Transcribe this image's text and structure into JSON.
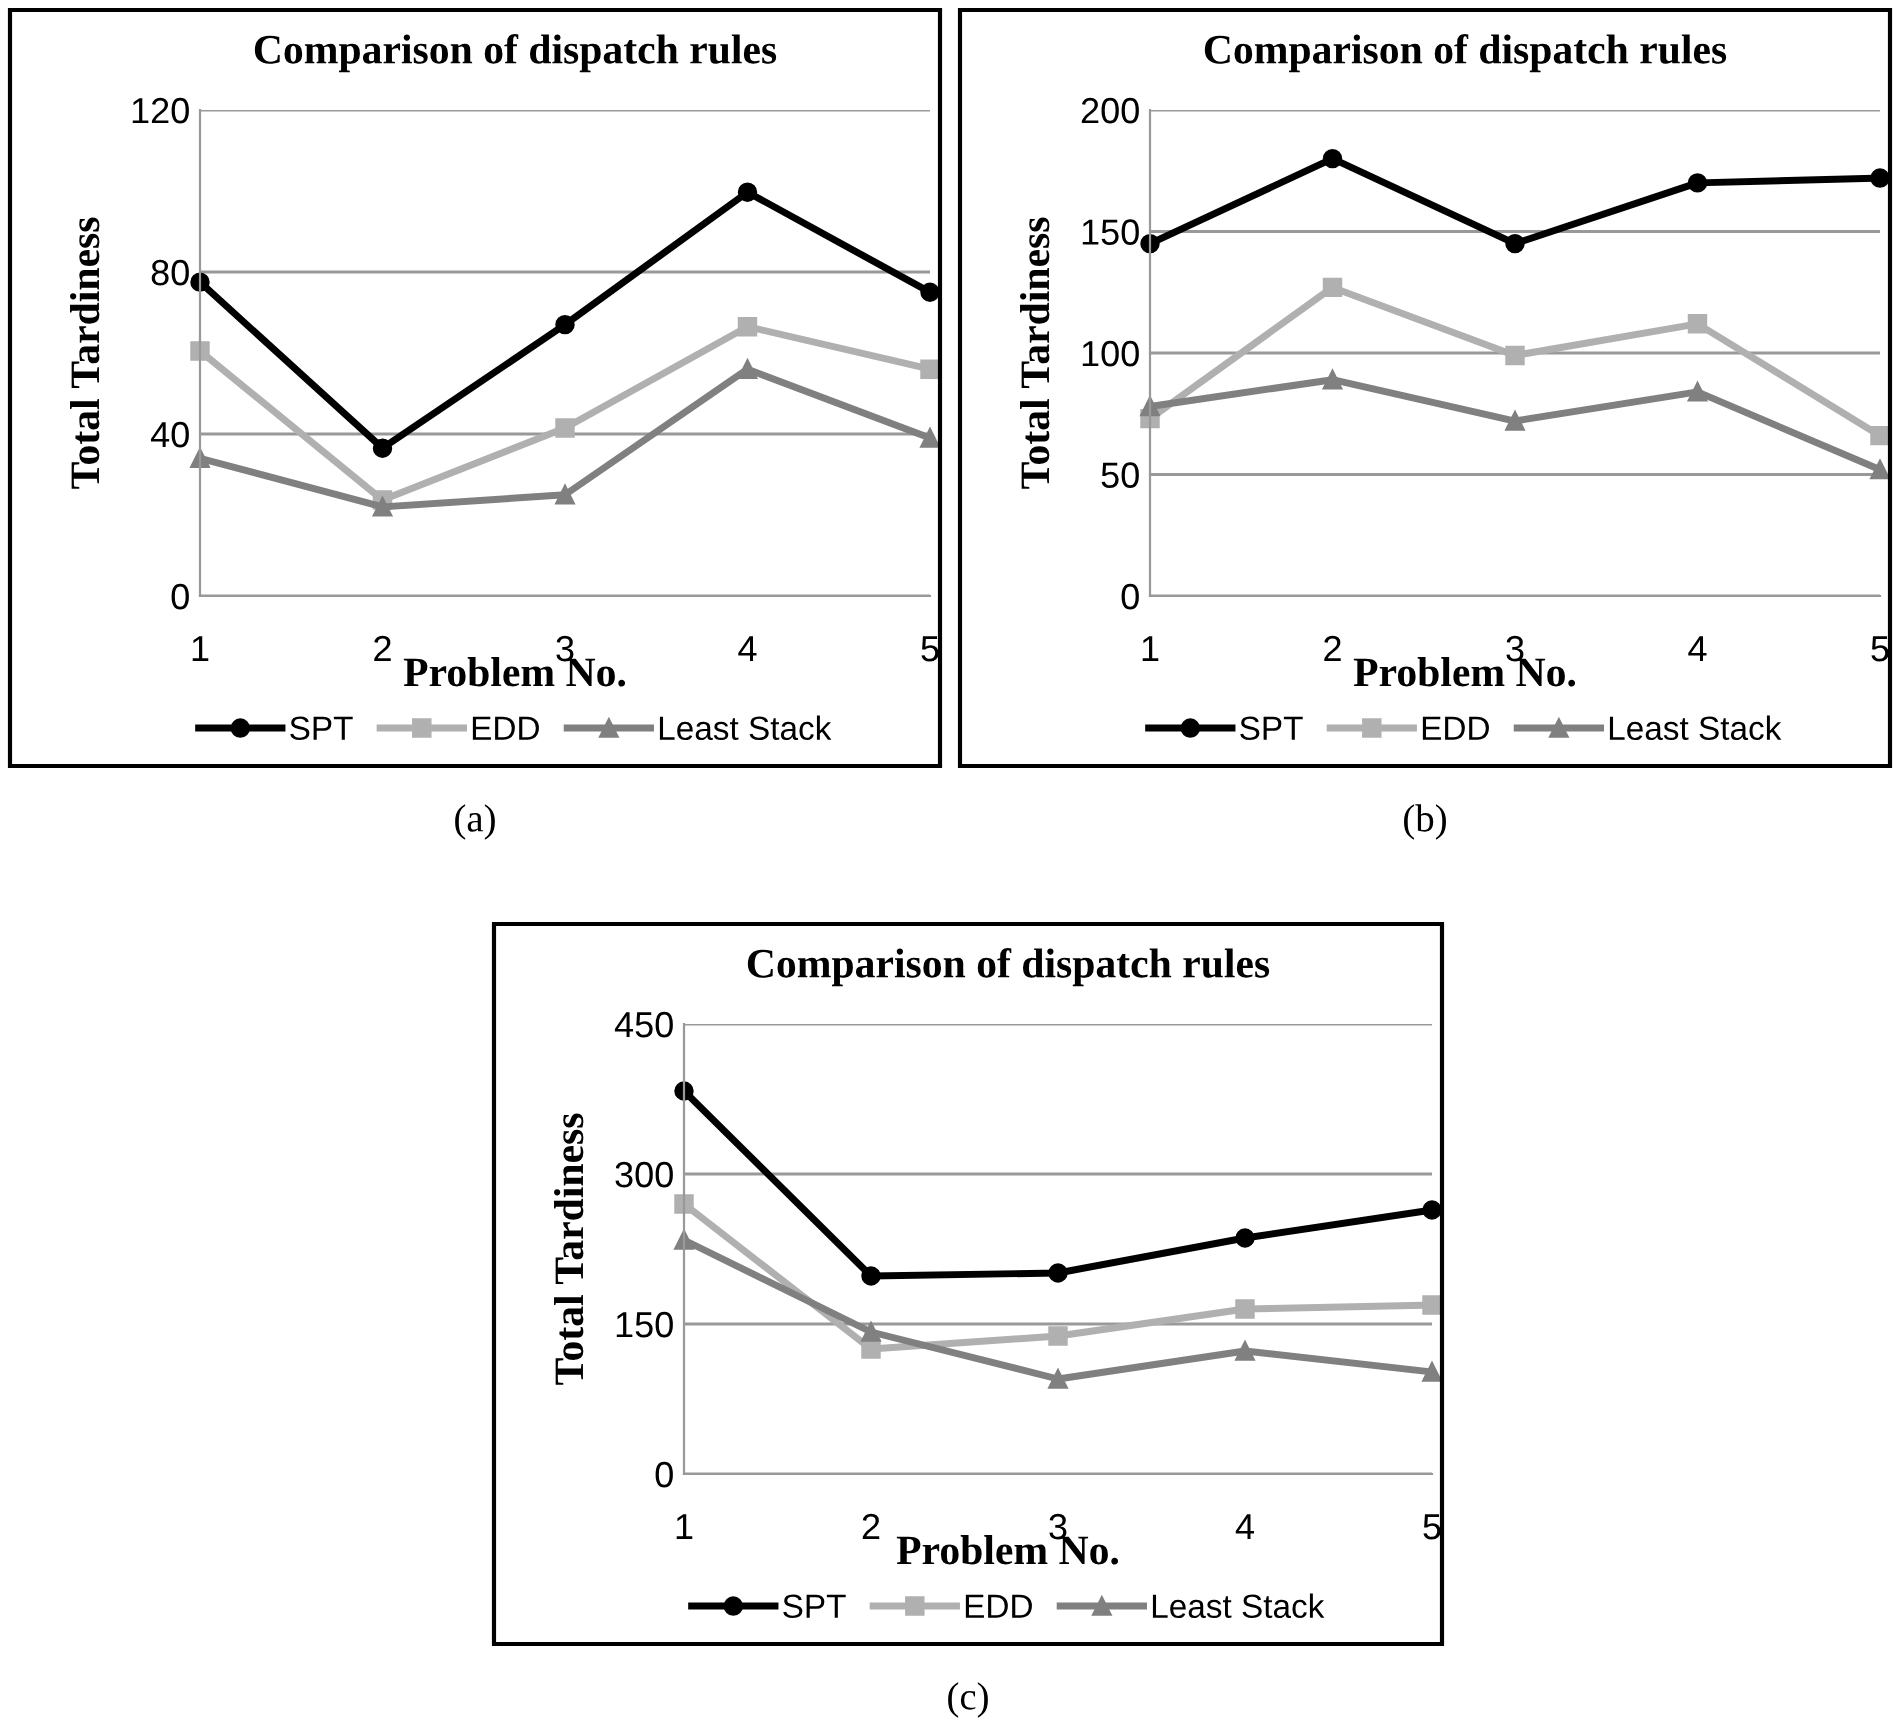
{
  "chart_data": [
    {
      "type": "line",
      "title": "Comparison of dispatch rules",
      "xlabel": "Problem No.",
      "ylabel": "Total Tardiness",
      "categories": [
        "1",
        "2",
        "3",
        "4",
        "5"
      ],
      "ylim": [
        0,
        120
      ],
      "yticks": [
        0,
        40,
        80,
        120
      ],
      "grid": "y",
      "legend": "bottom",
      "annotations": [
        "(a)"
      ],
      "series": [
        {
          "name": "SPT",
          "color": "#000000",
          "marker": "circle",
          "values": [
            77.5,
            36.5,
            67,
            99.7,
            75
          ]
        },
        {
          "name": "EDD",
          "color": "#b0b0b0",
          "marker": "square",
          "values": [
            60.5,
            23.7,
            41.5,
            66.5,
            56
          ]
        },
        {
          "name": "Least Stack",
          "color": "#808080",
          "marker": "triangle",
          "values": [
            34,
            22,
            25,
            56,
            39
          ]
        }
      ]
    },
    {
      "type": "line",
      "title": "Comparison of dispatch rules",
      "xlabel": "Problem No.",
      "ylabel": "Total Tardiness",
      "categories": [
        "1",
        "2",
        "3",
        "4",
        "5"
      ],
      "ylim": [
        0,
        200
      ],
      "yticks": [
        0,
        50,
        100,
        150,
        200
      ],
      "grid": "y",
      "legend": "bottom",
      "annotations": [
        "(b)"
      ],
      "series": [
        {
          "name": "SPT",
          "color": "#000000",
          "marker": "circle",
          "values": [
            145,
            180,
            145,
            170,
            172
          ]
        },
        {
          "name": "EDD",
          "color": "#b0b0b0",
          "marker": "square",
          "values": [
            73,
            127,
            99,
            112,
            66
          ]
        },
        {
          "name": "Least Stack",
          "color": "#808080",
          "marker": "triangle",
          "values": [
            78,
            89,
            72,
            84,
            52
          ]
        }
      ]
    },
    {
      "type": "line",
      "title": "Comparison of dispatch rules",
      "xlabel": "Problem No.",
      "ylabel": "Total Tardiness",
      "categories": [
        "1",
        "2",
        "3",
        "4",
        "5"
      ],
      "ylim": [
        0,
        450
      ],
      "yticks": [
        0,
        150,
        300,
        450
      ],
      "grid": "y",
      "legend": "bottom",
      "annotations": [
        "(c)"
      ],
      "series": [
        {
          "name": "SPT",
          "color": "#000000",
          "marker": "circle",
          "values": [
            383,
            198,
            201,
            236,
            264
          ]
        },
        {
          "name": "EDD",
          "color": "#b0b0b0",
          "marker": "square",
          "values": [
            270,
            125,
            138,
            165,
            169
          ]
        },
        {
          "name": "Least Stack",
          "color": "#808080",
          "marker": "triangle",
          "values": [
            234,
            142,
            95,
            123,
            102
          ]
        }
      ]
    }
  ]
}
